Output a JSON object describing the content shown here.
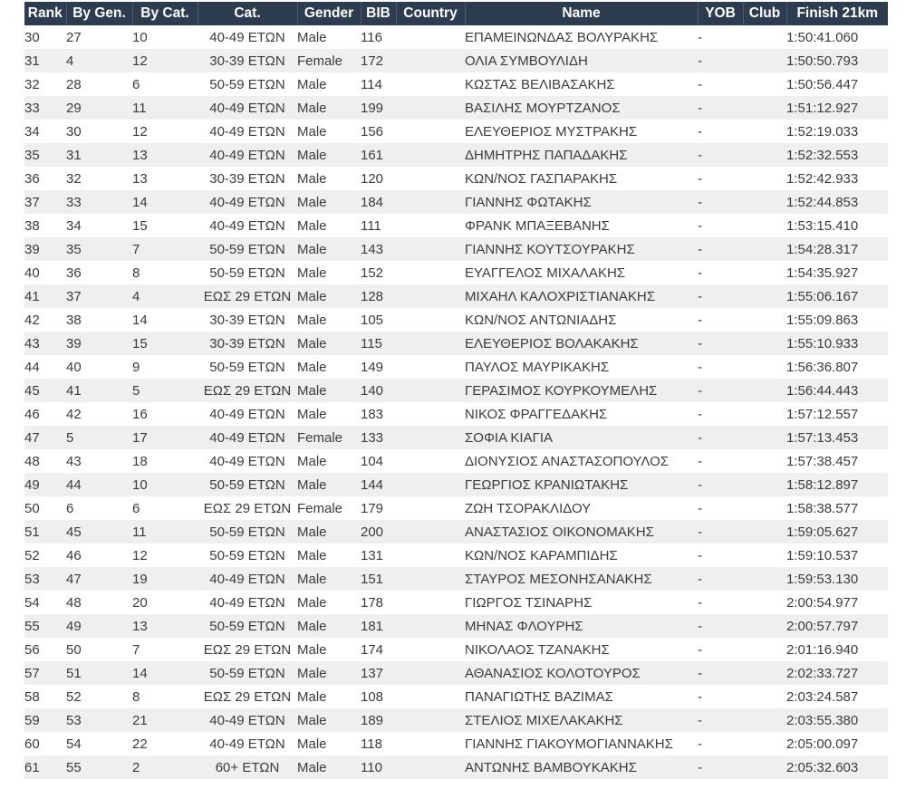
{
  "colors": {
    "page_bg": "#ffffff",
    "header_bg": "#2e3c50",
    "header_text": "#ffffff",
    "header_divider": "#4a5a70",
    "row_alt": "#efefef",
    "text": "#3b3b3b"
  },
  "results_table": {
    "headers": [
      "Rank",
      "By Gen.",
      "By Cat.",
      "Cat.",
      "Gender",
      "BIB",
      "Country",
      "Name",
      "YOB",
      "Club",
      "Finish 21km"
    ],
    "header_keys": [
      "rank",
      "by-gen",
      "by-cat",
      "cat",
      "gender",
      "bib",
      "country",
      "name",
      "yob",
      "club",
      "finish-21km"
    ],
    "rows": [
      [
        "30",
        "27",
        "10",
        "40-49 ΕΤΩΝ",
        "Male",
        "116",
        "",
        "ΕΠΑΜΕΙΝΩΝΔΑΣ ΒΟΛΥΡΑΚΗΣ",
        "-",
        "",
        "1:50:41.060"
      ],
      [
        "31",
        "4",
        "12",
        "30-39 ΕΤΩΝ",
        "Female",
        "172",
        "",
        "ΟΛΙΑ ΣΥΜΒΟΥΛΙΔΗ",
        "-",
        "",
        "1:50:50.793"
      ],
      [
        "32",
        "28",
        "6",
        "50-59 ΕΤΩΝ",
        "Male",
        "114",
        "",
        "ΚΩΣΤΑΣ ΒΕΛΙΒΑΣΑΚΗΣ",
        "-",
        "",
        "1:50:56.447"
      ],
      [
        "33",
        "29",
        "11",
        "40-49 ΕΤΩΝ",
        "Male",
        "199",
        "",
        "ΒΑΣΙΛΗΣ ΜΟΥΡΤΖΑΝΟΣ",
        "-",
        "",
        "1:51:12.927"
      ],
      [
        "34",
        "30",
        "12",
        "40-49 ΕΤΩΝ",
        "Male",
        "156",
        "",
        "ΕΛΕΥΘΕΡΙΟΣ ΜΥΣΤΡΑΚΗΣ",
        "-",
        "",
        "1:52:19.033"
      ],
      [
        "35",
        "31",
        "13",
        "40-49 ΕΤΩΝ",
        "Male",
        "161",
        "",
        "ΔΗΜΗΤΡΗΣ ΠΑΠΑΔΑΚΗΣ",
        "-",
        "",
        "1:52:32.553"
      ],
      [
        "36",
        "32",
        "13",
        "30-39 ΕΤΩΝ",
        "Male",
        "120",
        "",
        "ΚΩΝ/ΝΟΣ ΓΑΣΠΑΡΑΚΗΣ",
        "-",
        "",
        "1:52:42.933"
      ],
      [
        "37",
        "33",
        "14",
        "40-49 ΕΤΩΝ",
        "Male",
        "184",
        "",
        "ΓΙΑΝΝΗΣ ΦΩΤΑΚΗΣ",
        "-",
        "",
        "1:52:44.853"
      ],
      [
        "38",
        "34",
        "15",
        "40-49 ΕΤΩΝ",
        "Male",
        "111",
        "",
        "ΦΡΑΝΚ ΜΠΑΞΕΒΑΝΗΣ",
        "-",
        "",
        "1:53:15.410"
      ],
      [
        "39",
        "35",
        "7",
        "50-59 ΕΤΩΝ",
        "Male",
        "143",
        "",
        "ΓΙΑΝΝΗΣ ΚΟΥΤΣΟΥΡΑΚΗΣ",
        "-",
        "",
        "1:54:28.317"
      ],
      [
        "40",
        "36",
        "8",
        "50-59 ΕΤΩΝ",
        "Male",
        "152",
        "",
        "ΕΥΑΓΓΕΛΟΣ ΜΙΧΑΛΑΚΗΣ",
        "-",
        "",
        "1:54:35.927"
      ],
      [
        "41",
        "37",
        "4",
        "ΕΩΣ 29 ΕΤΩΝ",
        "Male",
        "128",
        "",
        "ΜΙΧΑΗΛ ΚΑΛΟΧΡΙΣΤΙΑΝΑΚΗΣ",
        "-",
        "",
        "1:55:06.167"
      ],
      [
        "42",
        "38",
        "14",
        "30-39 ΕΤΩΝ",
        "Male",
        "105",
        "",
        "ΚΩΝ/ΝΟΣ ΑΝΤΩΝΙΑΔΗΣ",
        "-",
        "",
        "1:55:09.863"
      ],
      [
        "43",
        "39",
        "15",
        "30-39 ΕΤΩΝ",
        "Male",
        "115",
        "",
        "ΕΛΕΥΘΕΡΙΟΣ ΒΟΛΑΚΑΚΗΣ",
        "-",
        "",
        "1:55:10.933"
      ],
      [
        "44",
        "40",
        "9",
        "50-59 ΕΤΩΝ",
        "Male",
        "149",
        "",
        "ΠΑΥΛΟΣ ΜΑΥΡΙΚΑΚΗΣ",
        "-",
        "",
        "1:56:36.807"
      ],
      [
        "45",
        "41",
        "5",
        "ΕΩΣ 29 ΕΤΩΝ",
        "Male",
        "140",
        "",
        "ΓΕΡΑΣΙΜΟΣ ΚΟΥΡΚΟΥΜΕΛΗΣ",
        "-",
        "",
        "1:56:44.443"
      ],
      [
        "46",
        "42",
        "16",
        "40-49 ΕΤΩΝ",
        "Male",
        "183",
        "",
        "ΝΙΚΟΣ ΦΡΑΓΓΕΔΑΚΗΣ",
        "-",
        "",
        "1:57:12.557"
      ],
      [
        "47",
        "5",
        "17",
        "40-49 ΕΤΩΝ",
        "Female",
        "133",
        "",
        "ΣΟΦΙΑ ΚΙΑΓΙΑ",
        "-",
        "",
        "1:57:13.453"
      ],
      [
        "48",
        "43",
        "18",
        "40-49 ΕΤΩΝ",
        "Male",
        "104",
        "",
        "ΔΙΟΝΥΣΙΟΣ ΑΝΑΣΤΑΣΟΠΟΥΛΟΣ",
        "-",
        "",
        "1:57:38.457"
      ],
      [
        "49",
        "44",
        "10",
        "50-59 ΕΤΩΝ",
        "Male",
        "144",
        "",
        "ΓΕΩΡΓΙΟΣ ΚΡΑΝΙΩΤΑΚΗΣ",
        "-",
        "",
        "1:58:12.897"
      ],
      [
        "50",
        "6",
        "6",
        "ΕΩΣ 29 ΕΤΩΝ",
        "Female",
        "179",
        "",
        "ΖΩΗ ΤΣΟΡΑΚΛΙΔΟΥ",
        "-",
        "",
        "1:58:38.577"
      ],
      [
        "51",
        "45",
        "11",
        "50-59 ΕΤΩΝ",
        "Male",
        "200",
        "",
        "ΑΝΑΣΤΑΣΙΟΣ ΟΙΚΟΝΟΜΑΚΗΣ",
        "-",
        "",
        "1:59:05.627"
      ],
      [
        "52",
        "46",
        "12",
        "50-59 ΕΤΩΝ",
        "Male",
        "131",
        "",
        "ΚΩΝ/ΝΟΣ ΚΑΡΑΜΠΙΔΗΣ",
        "-",
        "",
        "1:59:10.537"
      ],
      [
        "53",
        "47",
        "19",
        "40-49 ΕΤΩΝ",
        "Male",
        "151",
        "",
        "ΣΤΑΥΡΟΣ ΜΕΣΟΝΗΣΑΝΑΚΗΣ",
        "-",
        "",
        "1:59:53.130"
      ],
      [
        "54",
        "48",
        "20",
        "40-49 ΕΤΩΝ",
        "Male",
        "178",
        "",
        "ΓΙΩΡΓΟΣ ΤΣΙΝΑΡΗΣ",
        "-",
        "",
        "2:00:54.977"
      ],
      [
        "55",
        "49",
        "13",
        "50-59 ΕΤΩΝ",
        "Male",
        "181",
        "",
        "ΜΗΝΑΣ ΦΛΟΥΡΗΣ",
        "-",
        "",
        "2:00:57.797"
      ],
      [
        "56",
        "50",
        "7",
        "ΕΩΣ 29 ΕΤΩΝ",
        "Male",
        "174",
        "",
        "ΝΙΚΟΛΑΟΣ ΤΖΑΝΑΚΗΣ",
        "-",
        "",
        "2:01:16.940"
      ],
      [
        "57",
        "51",
        "14",
        "50-59 ΕΤΩΝ",
        "Male",
        "137",
        "",
        "ΑΘΑΝΑΣΙΟΣ ΚΟΛΟΤΟΥΡΟΣ",
        "-",
        "",
        "2:02:33.727"
      ],
      [
        "58",
        "52",
        "8",
        "ΕΩΣ 29 ΕΤΩΝ",
        "Male",
        "108",
        "",
        "ΠΑΝΑΓΙΩΤΗΣ ΒΑΖΙΜΑΣ",
        "-",
        "",
        "2:03:24.587"
      ],
      [
        "59",
        "53",
        "21",
        "40-49 ΕΤΩΝ",
        "Male",
        "189",
        "",
        "ΣΤΕΛΙΟΣ ΜΙΧΕΛΑΚΑΚΗΣ",
        "-",
        "",
        "2:03:55.380"
      ],
      [
        "60",
        "54",
        "22",
        "40-49 ΕΤΩΝ",
        "Male",
        "118",
        "",
        "ΓΙΑΝΝΗΣ ΓΙΑΚΟΥΜΟΓΙΑΝΝΑΚΗΣ",
        "-",
        "",
        "2:05:00.097"
      ],
      [
        "61",
        "55",
        "2",
        "60+ ΕΤΩΝ",
        "Male",
        "110",
        "",
        "ΑΝΤΩΝΗΣ ΒΑΜΒΟΥΚΑΚΗΣ",
        "-",
        "",
        "2:05:32.603"
      ]
    ]
  }
}
